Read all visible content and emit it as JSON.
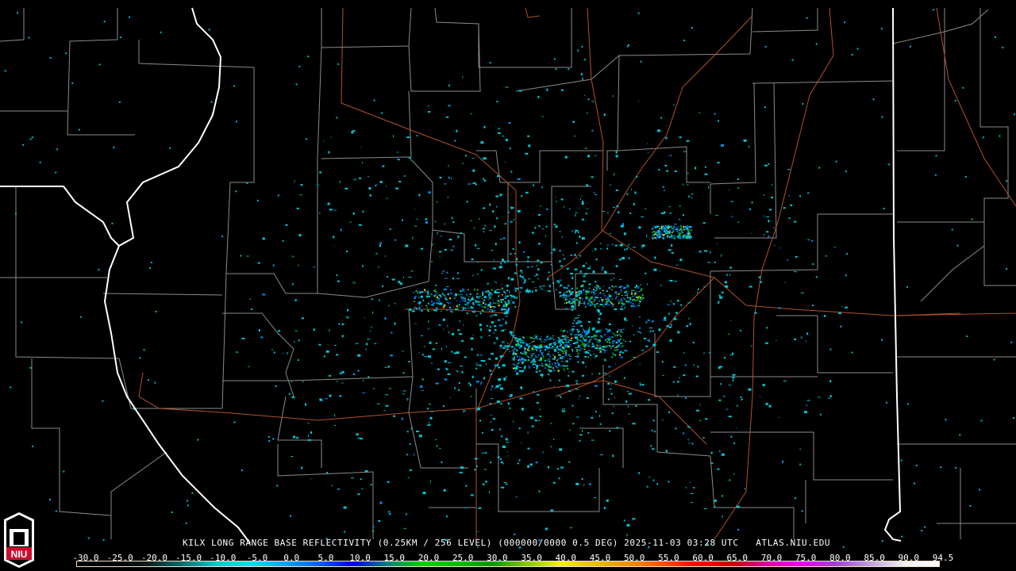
{
  "product_title": "KILX LONG RANGE BASE REFLECTIVITY (0.25KM / 256 LEVEL) (000000/0000 0.5 DEG) 2025-11-03 03:28 UTC   ATLAS.NIU.EDU",
  "logo": {
    "text": "NIU",
    "icon": "niu-university-seal-icon",
    "color": "#c8102e"
  },
  "legend": {
    "ticks": [
      "-30.0",
      "-25.0",
      "-20.0",
      "-15.0",
      "-10.0",
      "-5.0",
      "0.0",
      "5.0",
      "10.0",
      "15.0",
      "20.0",
      "25.0",
      "30.0",
      "35.0",
      "40.0",
      "45.0",
      "50.0",
      "55.0",
      "60.0",
      "65.0",
      "70.0",
      "75.0",
      "80.0",
      "85.0",
      "90.0",
      "94.5"
    ],
    "range": [
      -30.0,
      94.5
    ],
    "colors": [
      "#000000",
      "#000000",
      "#0a1a1a",
      "#006a6a",
      "#00c8c8",
      "#00e0e8",
      "#00a8f0",
      "#0060f0",
      "#0000e8",
      "#008080",
      "#00d000",
      "#00c000",
      "#009800",
      "#80c800",
      "#f0f000",
      "#e8c000",
      "#f09000",
      "#ff5000",
      "#ff0000",
      "#c80000",
      "#e000a0",
      "#f000f0",
      "#a040d0",
      "#c0a0e0",
      "#f0f0f0",
      "#ffffff"
    ]
  },
  "map_colors": {
    "background": "#000000",
    "county_lines": "#8a8a8a",
    "state_lines": "#ffffff",
    "highways": "#b0522a"
  }
}
